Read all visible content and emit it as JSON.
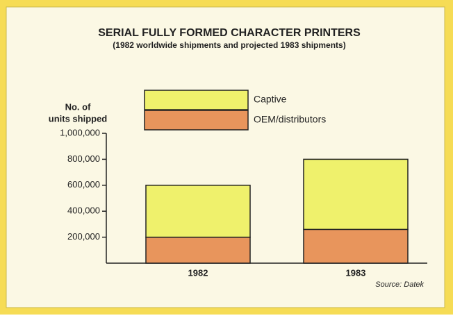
{
  "chart_data": {
    "type": "stacked_bar",
    "title": "SERIAL FULLY FORMED CHARACTER PRINTERS",
    "subtitle": "(1982 worldwide shipments and projected 1983 shipments)",
    "ylabel": [
      "No. of",
      "units shipped"
    ],
    "categories": [
      "1982",
      "1983"
    ],
    "series": [
      {
        "name": "OEM/distributors",
        "color": "#e8955c",
        "values": [
          200000,
          260000
        ]
      },
      {
        "name": "Captive",
        "color": "#eff16c",
        "values": [
          400000,
          540000
        ]
      }
    ],
    "ylim": [
      0,
      1000000
    ],
    "yticks": [
      {
        "value": 200000,
        "label": "200,000"
      },
      {
        "value": 400000,
        "label": "400,000"
      },
      {
        "value": 600000,
        "label": "600,000"
      },
      {
        "value": 800000,
        "label": "800,000"
      },
      {
        "value": 1000000,
        "label": "1,000,000"
      }
    ],
    "source": "Source: Datek"
  }
}
